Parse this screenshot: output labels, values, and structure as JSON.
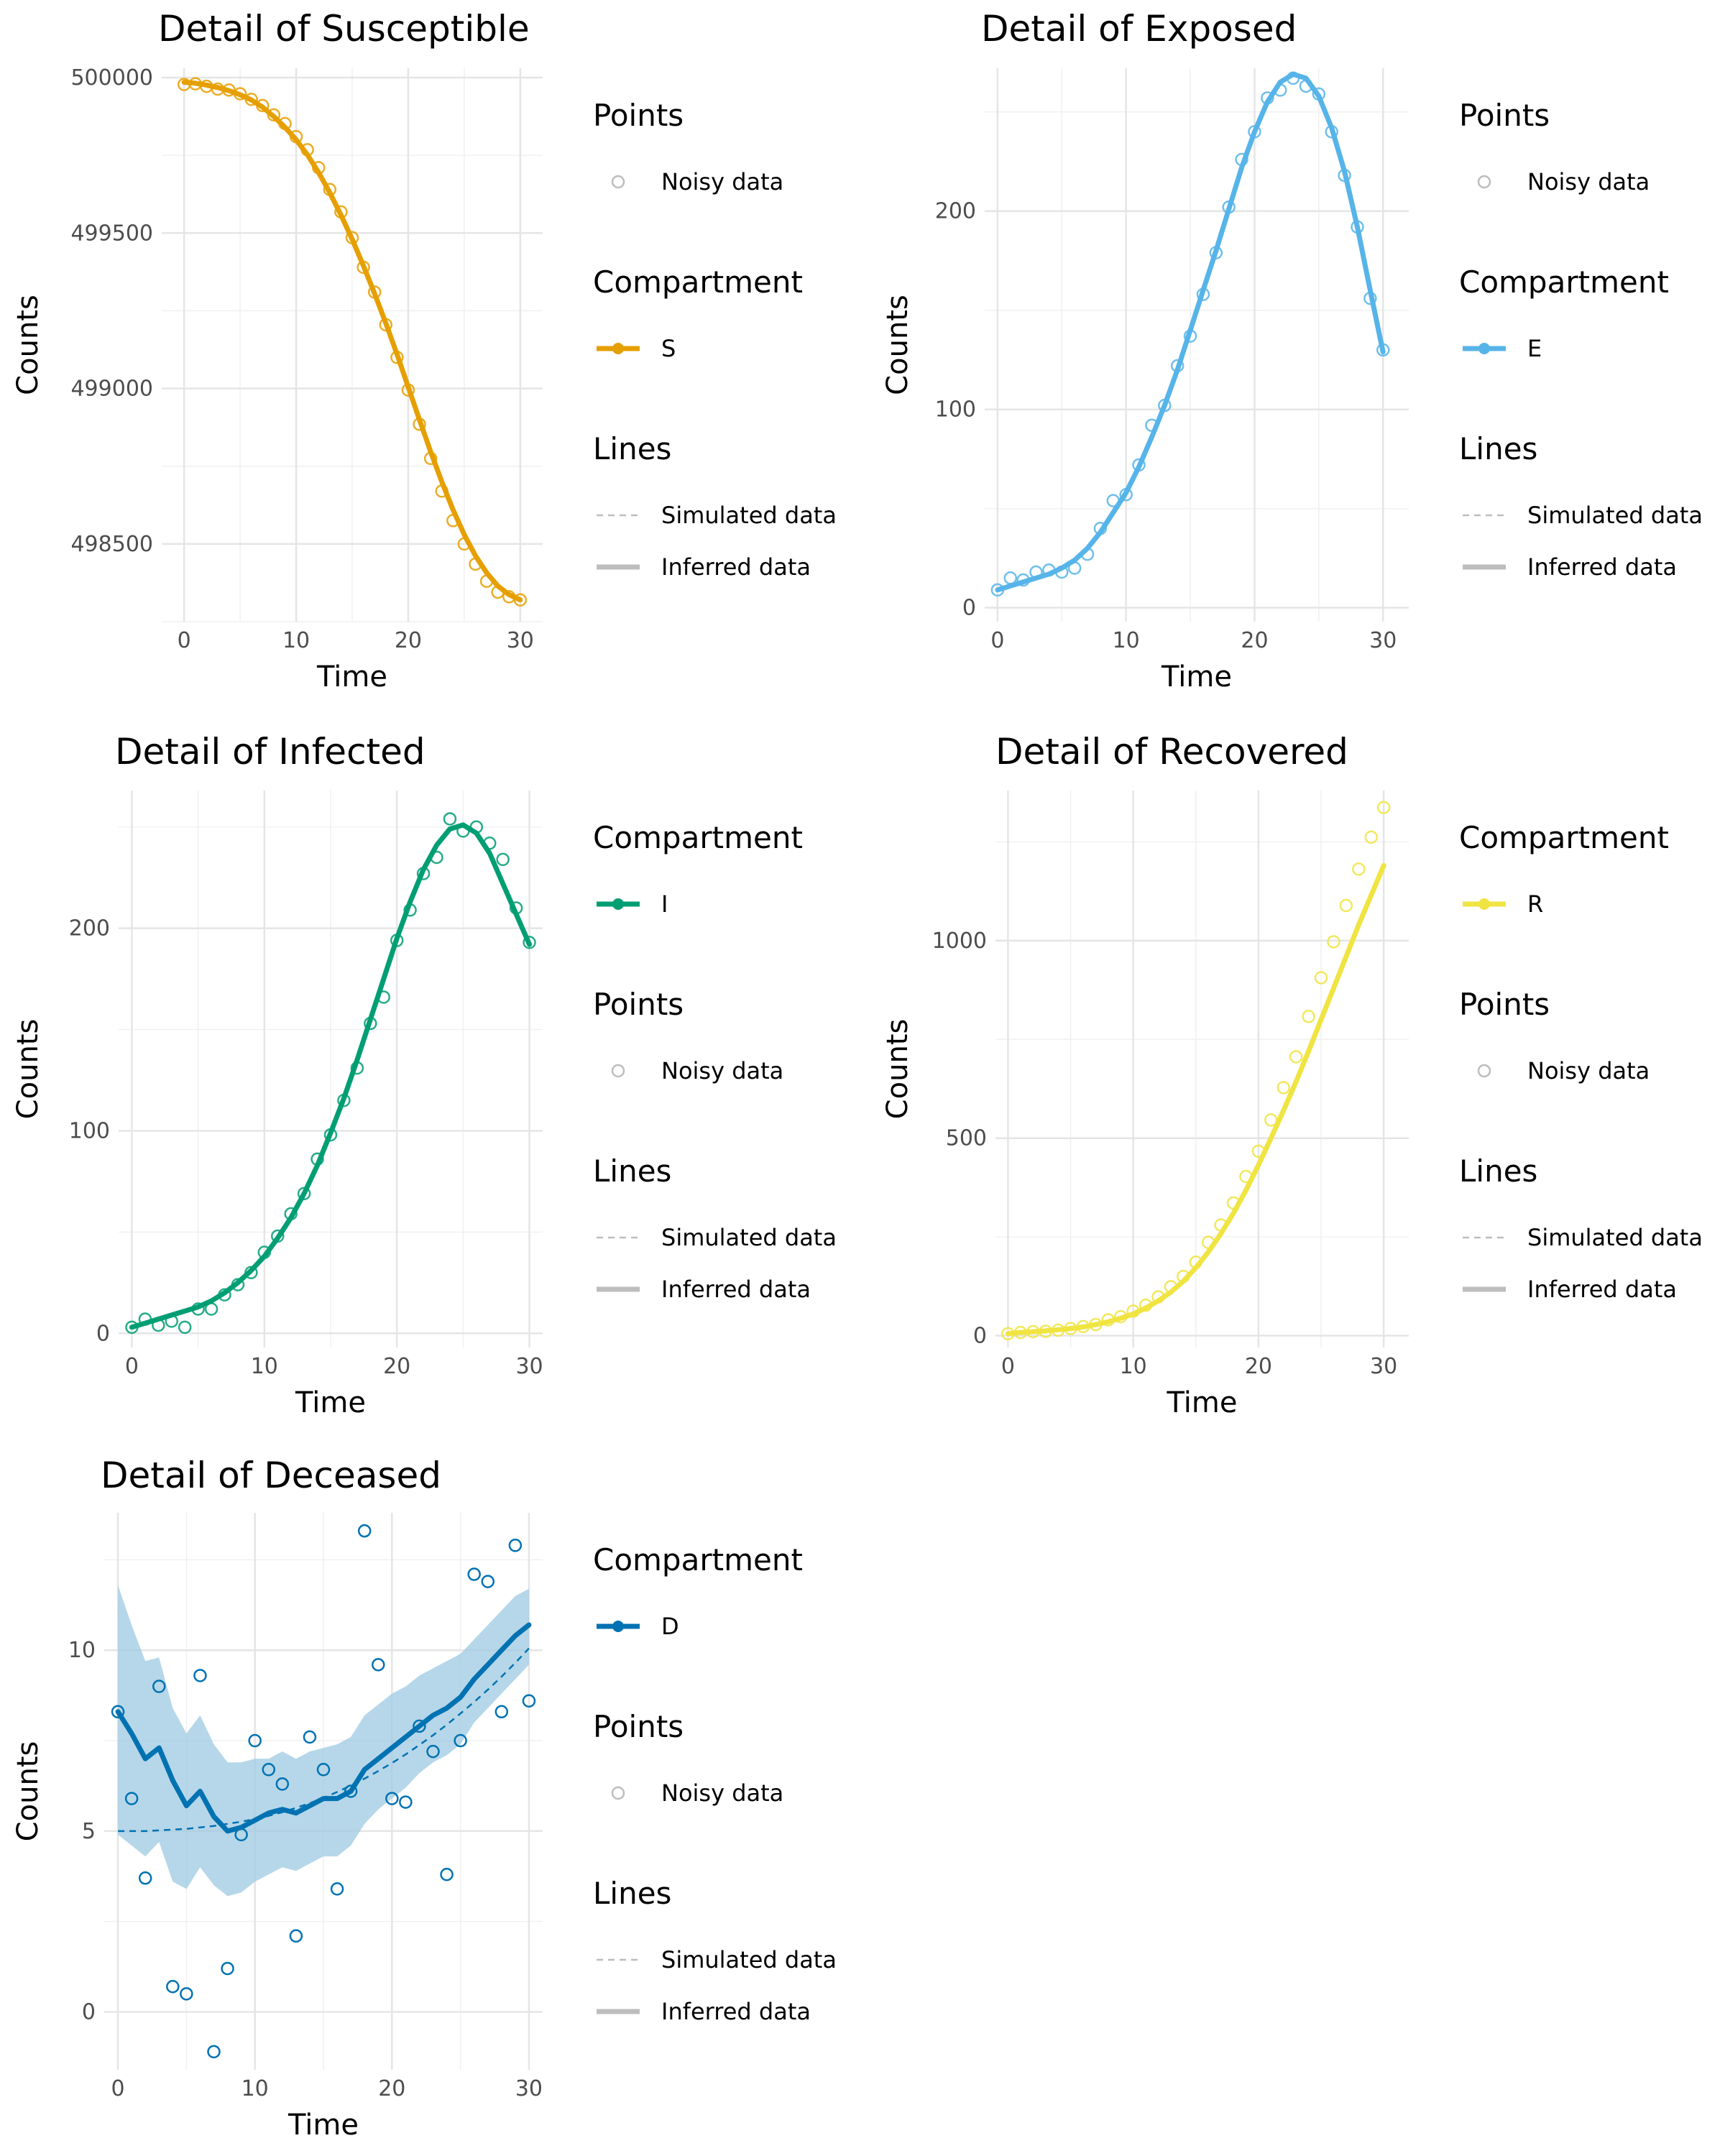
{
  "chart_data": [
    {
      "type": "line",
      "title": "Detail of Susceptible",
      "xlabel": "Time",
      "ylabel": "Counts",
      "xlim": [
        -2,
        32
      ],
      "ylim": [
        498250,
        500030
      ],
      "xticks": [
        0,
        10,
        20,
        30
      ],
      "yticks": [
        498500,
        499000,
        499500,
        500000
      ],
      "tick_labels_x": [
        "0",
        "10",
        "20",
        "30"
      ],
      "tick_labels_y": [
        "498500",
        "499000",
        "499500",
        "500000"
      ],
      "color": "#E69F00",
      "legend_order": [
        "points",
        "compartment",
        "lines"
      ],
      "legend": {
        "points_title": "Points",
        "points_label": "Noisy data",
        "compartment_title": "Compartment",
        "compartment_label": "S",
        "lines_title": "Lines",
        "simulated_label": "Simulated data",
        "inferred_label": "Inferred data"
      },
      "x": [
        0,
        1,
        2,
        3,
        4,
        5,
        6,
        7,
        8,
        9,
        10,
        11,
        12,
        13,
        14,
        15,
        16,
        17,
        18,
        19,
        20,
        21,
        22,
        23,
        24,
        25,
        26,
        27,
        28,
        29,
        30
      ],
      "series": [
        {
          "role": "inferred",
          "values": [
            499985,
            499982,
            499976,
            499968,
            499958,
            499945,
            499928,
            499905,
            499875,
            499840,
            499800,
            499752,
            499695,
            499630,
            499558,
            499480,
            499395,
            499305,
            499210,
            499110,
            499005,
            498900,
            498797,
            498700,
            498610,
            498530,
            498462,
            498407,
            498365,
            498337,
            498320
          ]
        },
        {
          "role": "noisy",
          "values": [
            499978,
            499980,
            499972,
            499963,
            499960,
            499948,
            499930,
            499910,
            499880,
            499852,
            499810,
            499768,
            499710,
            499640,
            499568,
            499485,
            499390,
            499310,
            499205,
            499100,
            498995,
            498885,
            498775,
            498670,
            498575,
            498500,
            498435,
            498380,
            498345,
            498330,
            498320
          ]
        }
      ]
    },
    {
      "type": "line",
      "title": "Detail of Exposed",
      "xlabel": "Time",
      "ylabel": "Counts",
      "xlim": [
        -1,
        32
      ],
      "ylim": [
        -7,
        272
      ],
      "xticks": [
        0,
        10,
        20,
        30
      ],
      "yticks": [
        0,
        100,
        200
      ],
      "tick_labels_x": [
        "0",
        "10",
        "20",
        "30"
      ],
      "tick_labels_y": [
        "0",
        "100",
        "200"
      ],
      "color": "#56B4E9",
      "legend_order": [
        "points",
        "compartment",
        "lines"
      ],
      "legend": {
        "points_title": "Points",
        "points_label": "Noisy data",
        "compartment_title": "Compartment",
        "compartment_label": "E",
        "lines_title": "Lines",
        "simulated_label": "Simulated data",
        "inferred_label": "Inferred data"
      },
      "x": [
        0,
        1,
        2,
        3,
        4,
        5,
        6,
        7,
        8,
        9,
        10,
        11,
        12,
        13,
        14,
        15,
        16,
        17,
        18,
        19,
        20,
        21,
        22,
        23,
        24,
        25,
        26,
        27,
        28,
        29,
        30
      ],
      "series": [
        {
          "role": "inferred",
          "values": [
            9,
            11,
            13,
            15,
            17,
            20,
            24,
            30,
            38,
            48,
            58,
            71,
            86,
            102,
            120,
            140,
            160,
            180,
            201,
            222,
            240,
            255,
            265,
            269,
            267,
            258,
            242,
            220,
            192,
            160,
            129
          ]
        },
        {
          "role": "noisy",
          "values": [
            9,
            15,
            14,
            18,
            19,
            18,
            20,
            27,
            40,
            54,
            57,
            72,
            92,
            102,
            122,
            137,
            158,
            179,
            202,
            226,
            240,
            257,
            261,
            267,
            263,
            259,
            240,
            218,
            192,
            156,
            130
          ]
        }
      ]
    },
    {
      "type": "line",
      "title": "Detail of Infected",
      "xlabel": "Time",
      "ylabel": "Counts",
      "xlim": [
        -1,
        31
      ],
      "ylim": [
        -7,
        268
      ],
      "xticks": [
        0,
        10,
        20,
        30
      ],
      "yticks": [
        0,
        100,
        200
      ],
      "tick_labels_x": [
        "0",
        "10",
        "20",
        "30"
      ],
      "tick_labels_y": [
        "0",
        "100",
        "200"
      ],
      "color": "#009E73",
      "legend_order": [
        "compartment",
        "points",
        "lines"
      ],
      "legend": {
        "points_title": "Points",
        "points_label": "Noisy data",
        "compartment_title": "Compartment",
        "compartment_label": "I",
        "lines_title": "Lines",
        "simulated_label": "Simulated data",
        "inferred_label": "Inferred data"
      },
      "x": [
        0,
        1,
        2,
        3,
        4,
        5,
        6,
        7,
        8,
        9,
        10,
        11,
        12,
        13,
        14,
        15,
        16,
        17,
        18,
        19,
        20,
        21,
        22,
        23,
        24,
        25,
        26,
        27,
        28,
        29,
        30
      ],
      "series": [
        {
          "role": "inferred",
          "values": [
            3,
            5,
            7,
            9,
            11,
            13,
            16,
            20,
            25,
            31,
            38,
            47,
            57,
            69,
            83,
            99,
            116,
            135,
            155,
            175,
            195,
            213,
            229,
            241,
            249,
            251,
            247,
            237,
            222,
            207,
            192
          ]
        },
        {
          "role": "noisy",
          "values": [
            3,
            7,
            4,
            6,
            3,
            12,
            12,
            19,
            24,
            30,
            40,
            48,
            59,
            69,
            86,
            98,
            115,
            131,
            153,
            166,
            194,
            209,
            227,
            235,
            254,
            248,
            250,
            242,
            234,
            210,
            193
          ]
        }
      ]
    },
    {
      "type": "line",
      "title": "Detail of Recovered",
      "xlabel": "Time",
      "ylabel": "Counts",
      "xlim": [
        -1,
        32
      ],
      "ylim": [
        -30,
        1380
      ],
      "xticks": [
        0,
        10,
        20,
        30
      ],
      "yticks": [
        0,
        500,
        1000
      ],
      "tick_labels_x": [
        "0",
        "10",
        "20",
        "30"
      ],
      "tick_labels_y": [
        "0",
        "500",
        "1000"
      ],
      "color": "#F0E442",
      "legend_order": [
        "compartment",
        "points",
        "lines"
      ],
      "legend": {
        "points_title": "Points",
        "points_label": "Noisy data",
        "compartment_title": "Compartment",
        "compartment_label": "R",
        "lines_title": "Lines",
        "simulated_label": "Simulated data",
        "inferred_label": "Inferred data"
      },
      "x": [
        0,
        1,
        2,
        3,
        4,
        5,
        6,
        7,
        8,
        9,
        10,
        11,
        12,
        13,
        14,
        15,
        16,
        17,
        18,
        19,
        20,
        21,
        22,
        23,
        24,
        25,
        26,
        27,
        28,
        29,
        30
      ],
      "series": [
        {
          "role": "inferred",
          "values": [
            5,
            8,
            10,
            12,
            15,
            18,
            22,
            28,
            35,
            44,
            55,
            70,
            88,
            110,
            138,
            172,
            212,
            258,
            310,
            368,
            432,
            500,
            570,
            643,
            720,
            800,
            880,
            960,
            1040,
            1115,
            1190
          ]
        },
        {
          "role": "noisy",
          "values": [
            5,
            8,
            10,
            11,
            14,
            18,
            23,
            28,
            40,
            48,
            62,
            77,
            98,
            124,
            150,
            186,
            236,
            280,
            336,
            403,
            467,
            546,
            628,
            706,
            808,
            906,
            997,
            1089,
            1181,
            1262,
            1337
          ]
        }
      ]
    },
    {
      "type": "line",
      "title": "Detail of Deceased",
      "xlabel": "Time",
      "ylabel": "Counts",
      "xlim": [
        -1,
        31
      ],
      "ylim": [
        -1.6,
        13.8
      ],
      "xticks": [
        0,
        10,
        20,
        30
      ],
      "yticks": [
        0,
        5,
        10
      ],
      "tick_labels_x": [
        "0",
        "10",
        "20",
        "30"
      ],
      "tick_labels_y": [
        "0",
        "5",
        "10"
      ],
      "color": "#0072B2",
      "ribbon_color": "#9ECAE1",
      "legend_order": [
        "compartment",
        "points",
        "lines"
      ],
      "legend": {
        "points_title": "Points",
        "points_label": "Noisy data",
        "compartment_title": "Compartment",
        "compartment_label": "D",
        "lines_title": "Lines",
        "simulated_label": "Simulated data",
        "inferred_label": "Inferred data"
      },
      "x": [
        0,
        1,
        2,
        3,
        4,
        5,
        6,
        7,
        8,
        9,
        10,
        11,
        12,
        13,
        14,
        15,
        16,
        17,
        18,
        19,
        20,
        21,
        22,
        23,
        24,
        25,
        26,
        27,
        28,
        29,
        30
      ],
      "series": [
        {
          "role": "inferred",
          "values": [
            8.3,
            7.7,
            7.0,
            7.3,
            6.4,
            5.7,
            6.1,
            5.4,
            5.0,
            5.1,
            5.3,
            5.5,
            5.6,
            5.5,
            5.7,
            5.9,
            5.9,
            6.1,
            6.7,
            7.0,
            7.3,
            7.6,
            7.9,
            8.2,
            8.4,
            8.7,
            9.2,
            9.6,
            10.0,
            10.4,
            10.7
          ]
        },
        {
          "role": "simulated",
          "values": [
            5.0,
            5.0,
            5.0,
            5.02,
            5.04,
            5.06,
            5.1,
            5.14,
            5.2,
            5.26,
            5.33,
            5.42,
            5.52,
            5.64,
            5.77,
            5.92,
            6.08,
            6.26,
            6.45,
            6.66,
            6.88,
            7.12,
            7.38,
            7.65,
            7.94,
            8.25,
            8.57,
            8.91,
            9.27,
            9.65,
            10.05
          ]
        },
        {
          "role": "noisy",
          "values": [
            8.3,
            5.9,
            3.7,
            9.0,
            0.7,
            0.5,
            9.3,
            -1.1,
            1.2,
            4.9,
            7.5,
            6.7,
            6.3,
            2.1,
            7.6,
            6.7,
            3.4,
            6.1,
            13.3,
            9.6,
            5.9,
            5.8,
            7.9,
            7.2,
            3.8,
            7.5,
            12.1,
            11.9,
            8.3,
            12.9,
            8.6
          ]
        },
        {
          "role": "ribbon_upper",
          "values": [
            11.8,
            10.7,
            9.7,
            9.8,
            8.4,
            7.7,
            8.2,
            7.4,
            6.9,
            6.9,
            7.0,
            7.0,
            7.2,
            7.0,
            7.2,
            7.3,
            7.4,
            7.6,
            8.2,
            8.5,
            8.8,
            9.0,
            9.3,
            9.5,
            9.7,
            9.9,
            10.3,
            10.7,
            11.1,
            11.5,
            11.7
          ]
        },
        {
          "role": "ribbon_lower",
          "values": [
            4.9,
            4.6,
            4.3,
            4.7,
            3.6,
            3.4,
            4.0,
            3.5,
            3.2,
            3.3,
            3.6,
            3.8,
            4.0,
            3.9,
            4.1,
            4.3,
            4.3,
            4.6,
            5.2,
            5.6,
            5.9,
            6.2,
            6.6,
            6.9,
            7.1,
            7.4,
            8.0,
            8.4,
            8.8,
            9.2,
            9.6
          ]
        }
      ]
    }
  ]
}
